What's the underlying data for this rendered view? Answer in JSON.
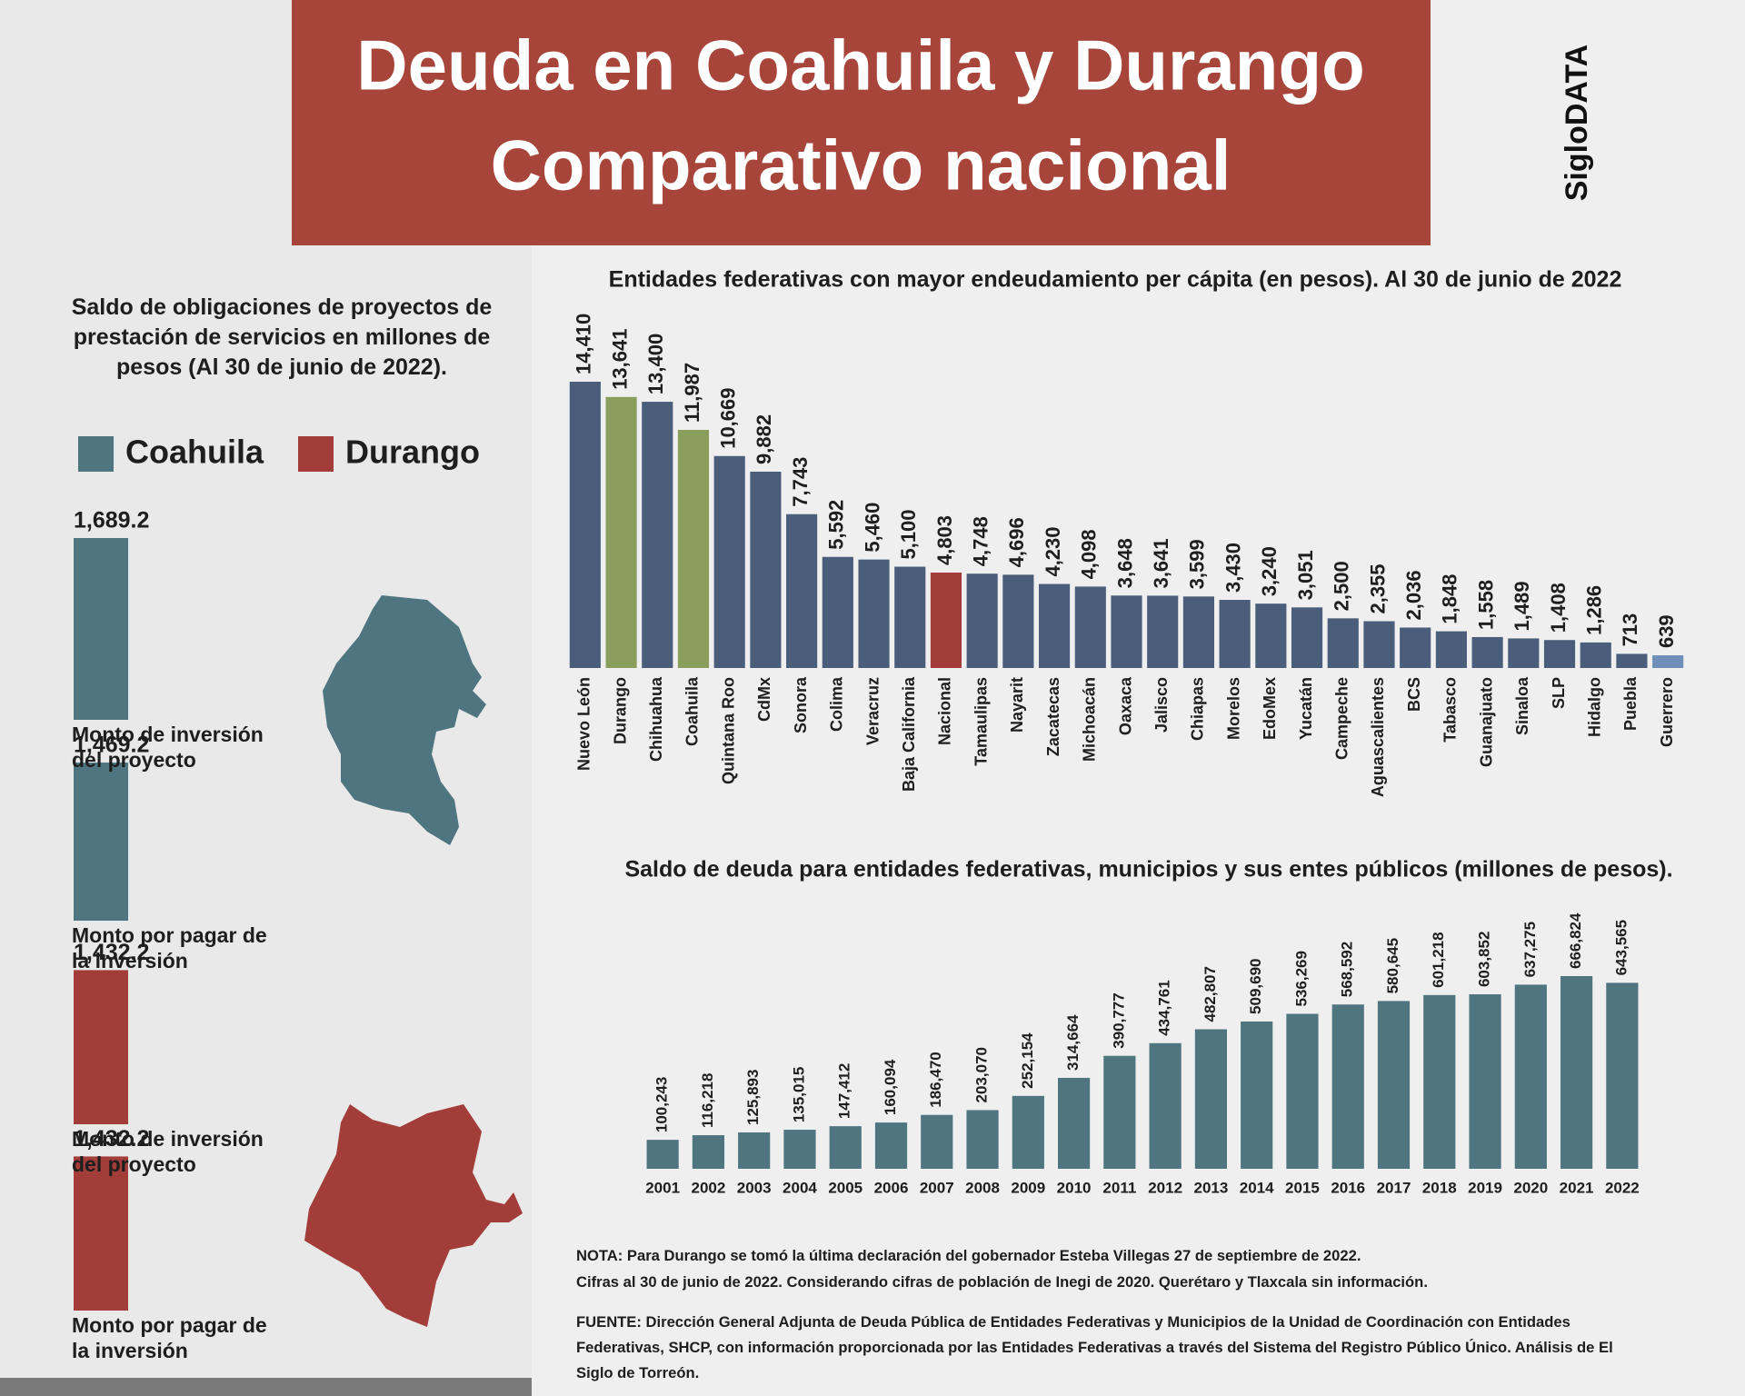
{
  "header": {
    "title_lines": [
      "Deuda en Coahuila y Durango",
      "Comparativo nacional"
    ],
    "brand": "SigloDATA"
  },
  "chart_data": [
    {
      "type": "bar",
      "title": "Saldo de obligaciones de proyectos de prestación de servicios en millones de pesos (Al 30 de junio de 2022).",
      "categories": [
        "Monto de inversión del proyecto",
        "Monto por pagar de la inversión"
      ],
      "series": [
        {
          "name": "Coahuila",
          "color": "#4e7580",
          "values": [
            1689.2,
            1469.2
          ],
          "value_labels": [
            "1,689.2",
            "1,469.2"
          ]
        },
        {
          "name": "Durango",
          "color": "#a33d3a",
          "values": [
            1432.2,
            1432.2
          ],
          "value_labels": [
            "1,432.2",
            "1,432.2"
          ]
        }
      ]
    },
    {
      "type": "bar",
      "title": "Entidades federativas con mayor endeudamiento per cápita (en pesos). Al 30 de junio de 2022",
      "categories": [
        "Nuevo León",
        "Durango",
        "Chihuahua",
        "Coahuila",
        "Quintana Roo",
        "CdMx",
        "Sonora",
        "Colima",
        "Veracruz",
        "Baja California",
        "Nacional",
        "Tamaulipas",
        "Nayarit",
        "Zacatecas",
        "Michoacán",
        "Oaxaca",
        "Jalisco",
        "Chiapas",
        "Morelos",
        "EdoMex",
        "Yucatán",
        "Campeche",
        "Aguascalientes",
        "BCS",
        "Tabasco",
        "Guanajuato",
        "Sinaloa",
        "SLP",
        "Hidalgo",
        "Puebla",
        "Guerrero"
      ],
      "values": [
        14410,
        13641,
        13400,
        11987,
        10669,
        9882,
        7743,
        5592,
        5460,
        5100,
        4803,
        4748,
        4696,
        4230,
        4098,
        3648,
        3641,
        3599,
        3430,
        3240,
        3051,
        2500,
        2355,
        2036,
        1848,
        1558,
        1489,
        1408,
        1286,
        713,
        639
      ],
      "value_labels": [
        "14,410",
        "13,641",
        "13,400",
        "11,987",
        "10,669",
        "9,882",
        "7,743",
        "5,592",
        "5,460",
        "5,100",
        "4,803",
        "4,748",
        "4,696",
        "4,230",
        "4,098",
        "3,648",
        "3,641",
        "3,599",
        "3,430",
        "3,240",
        "3,051",
        "2,500",
        "2,355",
        "2,036",
        "1,848",
        "1,558",
        "1,489",
        "1,408",
        "1,286",
        "713",
        "639"
      ],
      "colors": [
        "#4a5e7c",
        "#8a9e5b",
        "#4a5e7c",
        "#8a9e5b",
        "#4a5e7c",
        "#4a5e7c",
        "#4a5e7c",
        "#4a5e7c",
        "#4a5e7c",
        "#4a5e7c",
        "#a33d3a",
        "#4a5e7c",
        "#4a5e7c",
        "#4a5e7c",
        "#4a5e7c",
        "#4a5e7c",
        "#4a5e7c",
        "#4a5e7c",
        "#4a5e7c",
        "#4a5e7c",
        "#4a5e7c",
        "#4a5e7c",
        "#4a5e7c",
        "#4a5e7c",
        "#4a5e7c",
        "#4a5e7c",
        "#4a5e7c",
        "#4a5e7c",
        "#4a5e7c",
        "#4a5e7c",
        "#6f8fb8"
      ]
    },
    {
      "type": "bar",
      "title": "Saldo de deuda para entidades federativas, municipios y sus entes públicos (millones de pesos).",
      "categories": [
        "2001",
        "2002",
        "2003",
        "2004",
        "2005",
        "2006",
        "2007",
        "2008",
        "2009",
        "2010",
        "2011",
        "2012",
        "2013",
        "2014",
        "2015",
        "2016",
        "2017",
        "2018",
        "2019",
        "2020",
        "2021",
        "2022"
      ],
      "values": [
        100243,
        116218,
        125893,
        135015,
        147412,
        160094,
        186470,
        203070,
        252154,
        314664,
        390777,
        434761,
        482807,
        509690,
        536269,
        568592,
        580645,
        601218,
        603852,
        637275,
        666824,
        643565
      ],
      "value_labels": [
        "100,243",
        "116,218",
        "125,893",
        "135,015",
        "147,412",
        "160,094",
        "186,470",
        "203,070",
        "252,154",
        "314,664",
        "390,777",
        "434,761",
        "482,807",
        "509,690",
        "536,269",
        "568,592",
        "580,645",
        "601,218",
        "603,852",
        "637,275",
        "666,824",
        "643,565"
      ],
      "color": "#4e7580"
    }
  ],
  "notes": {
    "nota": [
      "NOTA: Para Durango se tomó la última declaración del gobernador Esteba Villegas 27 de septiembre de 2022.",
      "Cifras al 30 de junio de 2022. Considerando cifras de población de Inegi de 2020. Querétaro y Tlaxcala sin información."
    ],
    "fuente": "FUENTE: Dirección General Adjunta de Deuda Pública de Entidades Federativas y Municipios de la Unidad de Coordinación con Entidades Federativas, SHCP, con información proporcionada por las Entidades Federativas a través del Sistema del Registro Público Único. Análisis de El Siglo de Torreón."
  }
}
